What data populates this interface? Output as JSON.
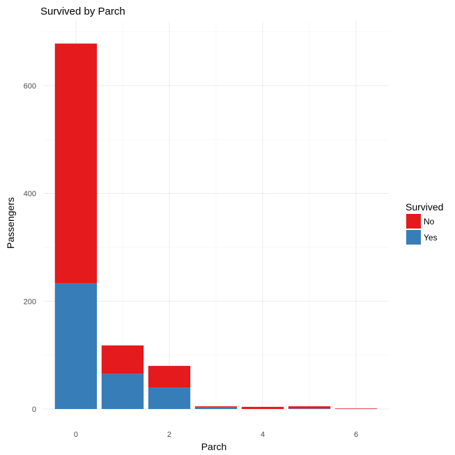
{
  "chart_data": {
    "type": "bar",
    "stacked": true,
    "title": "Survived by Parch",
    "xlabel": "Parch",
    "ylabel": "Passengers",
    "x": [
      0,
      1,
      2,
      3,
      4,
      5,
      6
    ],
    "xticks": [
      "0",
      "2",
      "4",
      "6"
    ],
    "yticks": [
      "0",
      "200",
      "400",
      "600"
    ],
    "xlim": [
      -0.7,
      6.7
    ],
    "ylim": [
      0,
      720
    ],
    "grid": true,
    "legend": {
      "title": "Survived",
      "position": "right",
      "entries": [
        "No",
        "Yes"
      ]
    },
    "series": [
      {
        "name": "Yes",
        "color": "#377eb8",
        "values": [
          233,
          65,
          40,
          3,
          0,
          1,
          0
        ]
      },
      {
        "name": "No",
        "color": "#e41a1c",
        "values": [
          445,
          53,
          40,
          2,
          4,
          4,
          1
        ]
      }
    ]
  }
}
